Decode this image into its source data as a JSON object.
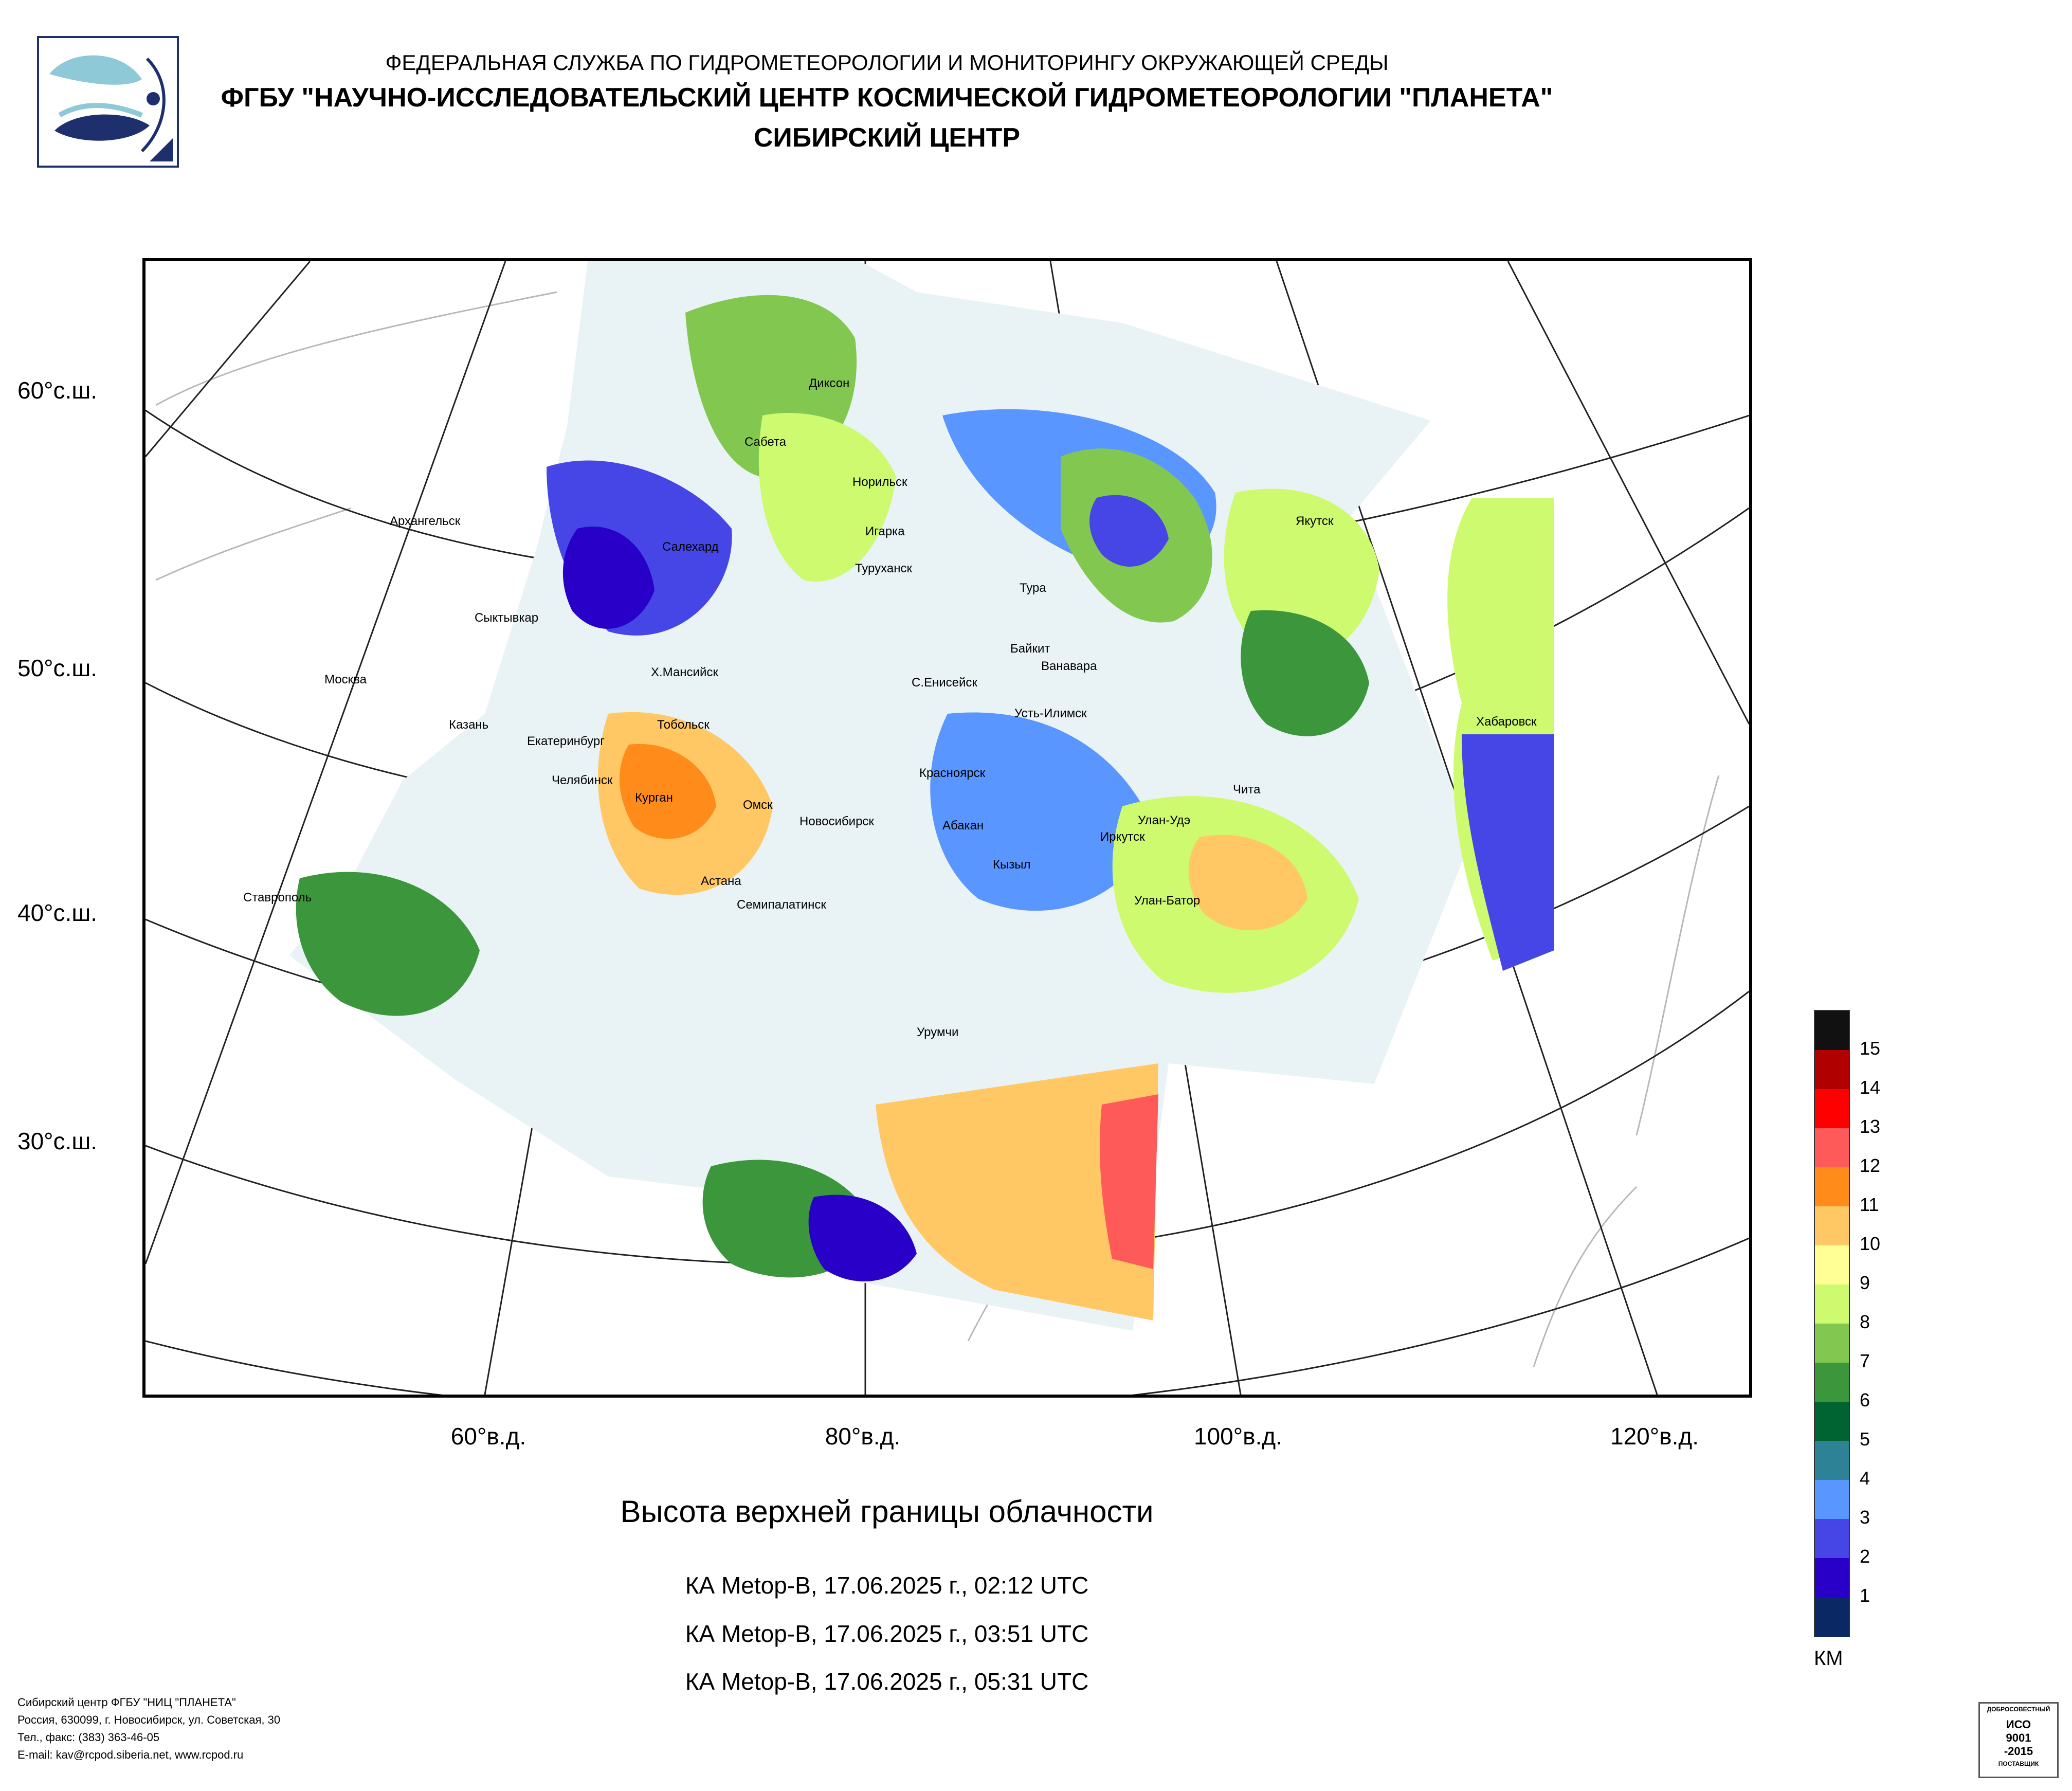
{
  "header": {
    "agency": "ФЕДЕРАЛЬНАЯ СЛУЖБА ПО ГИДРОМЕТЕОРОЛОГИИ И МОНИТОРИНГУ ОКРУЖАЮЩЕЙ СРЕДЫ",
    "institute": "ФГБУ \"НАУЧНО-ИССЛЕДОВАТЕЛЬСКИЙ ЦЕНТР КОСМИЧЕСКОЙ ГИДРОМЕТЕОРОЛОГИИ \"ПЛАНЕТА\"",
    "center": "СИБИРСКИЙ ЦЕНТР"
  },
  "map": {
    "lat_labels": [
      "60°с.ш.",
      "50°с.ш.",
      "40°с.ш.",
      "30°с.ш."
    ],
    "lon_labels": [
      "60°в.д.",
      "80°в.д.",
      "100°в.д.",
      "120°в.д."
    ],
    "cities": [
      "Диксон",
      "Сабета",
      "Норильск",
      "Архангельск",
      "Салехард",
      "Игарка",
      "Туруханск",
      "Тура",
      "Якутск",
      "Сыктывкар",
      "Байкит",
      "Ванавара",
      "Москва",
      "Х.Мансийск",
      "С.Енисейск",
      "Усть-Илимск",
      "Казань",
      "Тобольск",
      "Екатеринбург",
      "Хабаровск",
      "Челябинск",
      "Курган",
      "Красноярск",
      "Омск",
      "Новосибирск",
      "Абакан",
      "Чита",
      "Улан-Удэ",
      "Иркутск",
      "Кызыл",
      "Астана",
      "Ставрополь",
      "Семипалатинск",
      "Улан-Батор",
      "Урумчи"
    ]
  },
  "title": "Высота верхней границы облачности",
  "passes": [
    "КА Metop-B, 17.06.2025 г., 02:12 UTC",
    "КА Metop-B, 17.06.2025 г., 03:51 UTC",
    "КА Metop-B, 17.06.2025 г., 05:31 UTC"
  ],
  "legend": {
    "units": "КМ",
    "labels": [
      "15",
      "14",
      "13",
      "12",
      "11",
      "10",
      "9",
      "8",
      "7",
      "6",
      "5",
      "4",
      "3",
      "2",
      "1"
    ],
    "colors": [
      "#111111",
      "#b00000",
      "#ff0000",
      "#ff5a5a",
      "#ff8c1a",
      "#ffc864",
      "#ffff96",
      "#cdfa6e",
      "#82c850",
      "#3c963c",
      "#006432",
      "#2d8296",
      "#5a96ff",
      "#4646e6",
      "#2800c8",
      "#0a2864"
    ]
  },
  "footer": {
    "line1": "Сибирский центр ФГБУ \"НИЦ \"ПЛАНЕТА\"",
    "line2": "Россия, 630099, г. Новосибирск, ул. Советская, 30",
    "line3": "Тел., факс: (383) 363-46-05",
    "line4": "E-mail: kav@rcpod.siberia.net, www.rcpod.ru"
  },
  "iso_badge": {
    "top": "ДОБРОСОВЕСТНЫЙ",
    "line1": "ИСО",
    "line2": "9001",
    "line3": "-2015",
    "bottom": "ПОСТАВЩИК"
  }
}
